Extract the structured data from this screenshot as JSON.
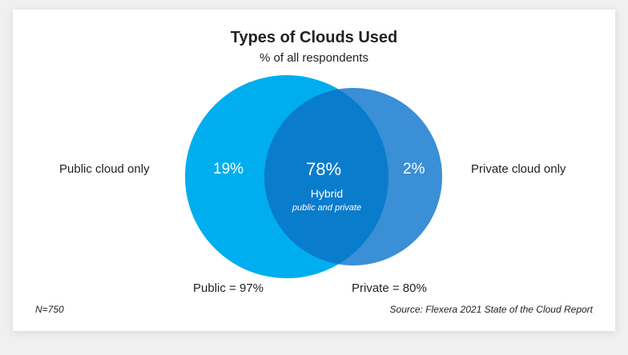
{
  "diagram": {
    "title": "Types of Clouds Used",
    "subtitle": "% of all respondents",
    "public_only_label": "Public cloud only",
    "private_only_label": "Private cloud only",
    "public_only_value": "19%",
    "private_only_value": "2%",
    "hybrid_value": "78%",
    "hybrid_label": "Hybrid",
    "hybrid_sublabel": "public and private",
    "public_total": "Public = 97%",
    "private_total": "Private = 80%",
    "sample_size": "N=750",
    "source": "Source: Flexera 2021 State of the Cloud Report",
    "colors": {
      "public": "#00aeef",
      "private": "#3a8fd6",
      "overlap": "#0a7ccc"
    }
  }
}
